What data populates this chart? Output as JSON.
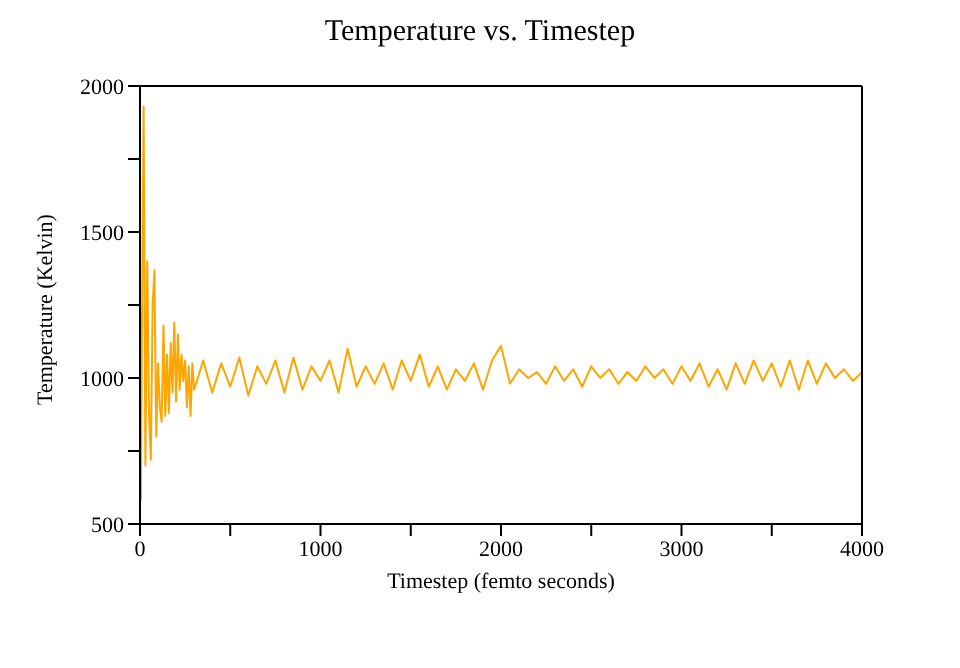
{
  "chart_data": {
    "type": "line",
    "title": "Temperature vs. Timestep",
    "xlabel": "Timestep (femto seconds)",
    "ylabel": "Temperature (Kelvin)",
    "x": [
      5,
      10,
      20,
      30,
      40,
      50,
      60,
      70,
      80,
      90,
      100,
      110,
      120,
      130,
      140,
      150,
      160,
      170,
      180,
      190,
      200,
      210,
      220,
      230,
      240,
      250,
      260,
      270,
      280,
      290,
      300,
      350,
      400,
      450,
      500,
      550,
      600,
      650,
      700,
      750,
      800,
      850,
      900,
      950,
      1000,
      1050,
      1100,
      1150,
      1200,
      1250,
      1300,
      1350,
      1400,
      1450,
      1500,
      1550,
      1600,
      1650,
      1700,
      1750,
      1800,
      1850,
      1900,
      1950,
      2000,
      2050,
      2100,
      2150,
      2200,
      2250,
      2300,
      2350,
      2400,
      2450,
      2500,
      2550,
      2600,
      2650,
      2700,
      2750,
      2800,
      2850,
      2900,
      2950,
      3000,
      3050,
      3100,
      3150,
      3200,
      3250,
      3300,
      3350,
      3400,
      3450,
      3500,
      3550,
      3600,
      3650,
      3700,
      3750,
      3800,
      3850,
      3900,
      3950,
      4000
    ],
    "series": [
      {
        "color": "#ffa500",
        "values": [
          580,
          1100,
          1930,
          700,
          1400,
          880,
          720,
          1250,
          1370,
          800,
          1050,
          900,
          850,
          1180,
          870,
          1080,
          880,
          1120,
          950,
          1190,
          920,
          1150,
          960,
          1080,
          990,
          1060,
          900,
          1040,
          870,
          1050,
          960,
          1060,
          950,
          1050,
          970,
          1070,
          940,
          1040,
          980,
          1060,
          950,
          1070,
          960,
          1040,
          990,
          1060,
          950,
          1100,
          970,
          1040,
          980,
          1050,
          960,
          1060,
          990,
          1080,
          970,
          1040,
          960,
          1030,
          990,
          1050,
          960,
          1060,
          1110,
          980,
          1030,
          1000,
          1020,
          980,
          1040,
          990,
          1030,
          970,
          1040,
          1000,
          1030,
          980,
          1020,
          990,
          1040,
          1000,
          1030,
          980,
          1040,
          990,
          1050,
          970,
          1030,
          960,
          1050,
          980,
          1060,
          990,
          1050,
          970,
          1060,
          960,
          1060,
          980,
          1050,
          1000,
          1030,
          990,
          1020
        ]
      }
    ],
    "xlim": [
      0,
      4000
    ],
    "xticks": [
      0,
      {
        "value": 500,
        "label": null
      },
      1000,
      {
        "value": 1500,
        "label": null
      },
      2000,
      {
        "value": 2500,
        "label": null
      },
      3000,
      {
        "value": 3500,
        "label": null
      },
      4000
    ],
    "ylim": [
      500,
      2000
    ],
    "yticks": [
      500,
      {
        "value": 750,
        "label": null
      },
      1000,
      {
        "value": 1250,
        "label": null
      },
      1500,
      {
        "value": 1750,
        "label": null
      },
      2000
    ],
    "grid": false,
    "legend": false,
    "marker": "none",
    "line_style": "solid"
  }
}
